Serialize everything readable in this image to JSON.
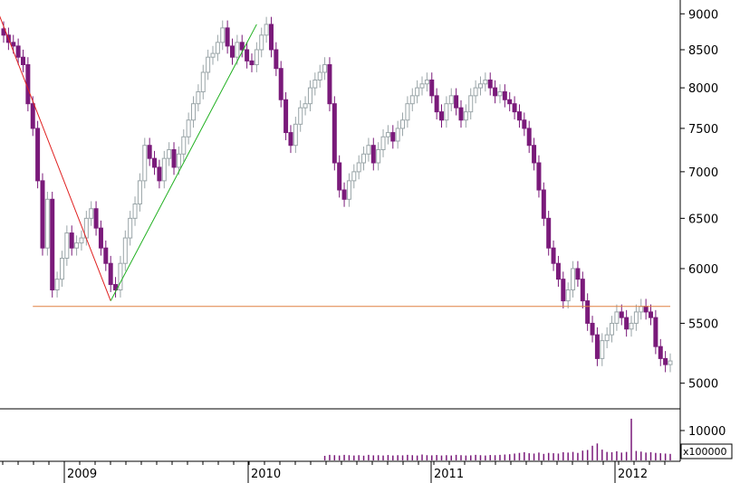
{
  "chart_data": {
    "type": "candlestick",
    "y_scale": "log",
    "ylim": [
      4800,
      9200
    ],
    "y_ticks": [
      "9000",
      "8500",
      "8000",
      "7500",
      "7000",
      "6500",
      "6000",
      "5500",
      "5000"
    ],
    "x_labels": [
      "2009",
      "2010",
      "2011",
      "2012"
    ],
    "volume": {
      "tick_label": "10000",
      "unit_label": "x100000",
      "ylim": [
        0,
        15000
      ]
    },
    "colors": {
      "up_candle": "#9aa5a8",
      "down_candle": "#7a1a7a",
      "volume_bar": "#7a1a7a",
      "support_line": "#e08040",
      "downtrend_line": "#e02020",
      "uptrend_line": "#20b020",
      "axis": "#000000"
    },
    "trendlines": [
      {
        "name": "support",
        "from": [
          "2008-09",
          5650
        ],
        "to": [
          "2012-03",
          5650
        ]
      },
      {
        "name": "downtrend",
        "from": [
          "2008-05",
          9000
        ],
        "to": [
          "2009-03",
          5700
        ]
      },
      {
        "name": "uptrend",
        "from": [
          "2009-03",
          5700
        ],
        "to": [
          "2009-12",
          8850
        ]
      }
    ],
    "closes": [
      8700,
      8600,
      8550,
      8400,
      8300,
      7800,
      7500,
      6900,
      6200,
      6700,
      5800,
      5900,
      6100,
      6350,
      6200,
      6250,
      6300,
      6500,
      6600,
      6400,
      6200,
      6050,
      5850,
      5800,
      6050,
      6300,
      6500,
      6650,
      6900,
      7300,
      7150,
      7050,
      6900,
      7150,
      7250,
      7050,
      7200,
      7400,
      7600,
      7800,
      7950,
      8200,
      8400,
      8450,
      8600,
      8800,
      8550,
      8400,
      8600,
      8500,
      8350,
      8300,
      8500,
      8700,
      8850,
      8500,
      8250,
      7850,
      7450,
      7300,
      7550,
      7750,
      7800,
      8000,
      8100,
      8200,
      8300,
      7800,
      7100,
      6800,
      6700,
      6900,
      7000,
      7100,
      7200,
      7300,
      7100,
      7250,
      7400,
      7450,
      7350,
      7500,
      7600,
      7800,
      7900,
      8000,
      8050,
      8100,
      7900,
      7700,
      7600,
      7800,
      7900,
      7750,
      7600,
      7700,
      7900,
      8000,
      8050,
      8100,
      8000,
      7900,
      7950,
      7850,
      7800,
      7700,
      7600,
      7500,
      7300,
      7100,
      6800,
      6500,
      6200,
      6050,
      5900,
      5700,
      5800,
      6000,
      5900,
      5700,
      5500,
      5400,
      5200,
      5350,
      5400,
      5500,
      5600,
      5550,
      5450,
      5500,
      5600,
      5650,
      5600,
      5550,
      5300,
      5200,
      5150,
      5180
    ],
    "volumes": [
      0,
      0,
      0,
      0,
      0,
      0,
      0,
      0,
      0,
      0,
      0,
      0,
      0,
      0,
      0,
      0,
      0,
      0,
      0,
      0,
      0,
      0,
      0,
      0,
      0,
      0,
      0,
      0,
      0,
      0,
      0,
      0,
      0,
      0,
      0,
      0,
      0,
      0,
      0,
      0,
      0,
      0,
      0,
      0,
      0,
      0,
      0,
      0,
      0,
      0,
      0,
      0,
      0,
      0,
      0,
      0,
      0,
      0,
      0,
      0,
      0,
      0,
      0,
      0,
      0,
      0,
      1400,
      1700,
      1600,
      1500,
      1700,
      1600,
      1500,
      1600,
      1450,
      1700,
      1550,
      1600,
      1500,
      1650,
      1500,
      1600,
      1550,
      1700,
      1600,
      1500,
      1800,
      1600,
      1550,
      1650,
      1500,
      1600,
      1500,
      1700,
      1600,
      1500,
      1550,
      1700,
      1600,
      1500,
      1650,
      1600,
      1700,
      1800,
      1900,
      2100,
      2300,
      2500,
      2200,
      2100,
      2400,
      2000,
      2300,
      2200,
      2100,
      2500,
      2400,
      2600,
      2300,
      3000,
      3200,
      4500,
      5200,
      3300,
      2600,
      2500,
      2800,
      2400,
      2600,
      12800,
      2900,
      2700,
      2400,
      2500,
      2300,
      2200,
      2100,
      2000
    ]
  }
}
